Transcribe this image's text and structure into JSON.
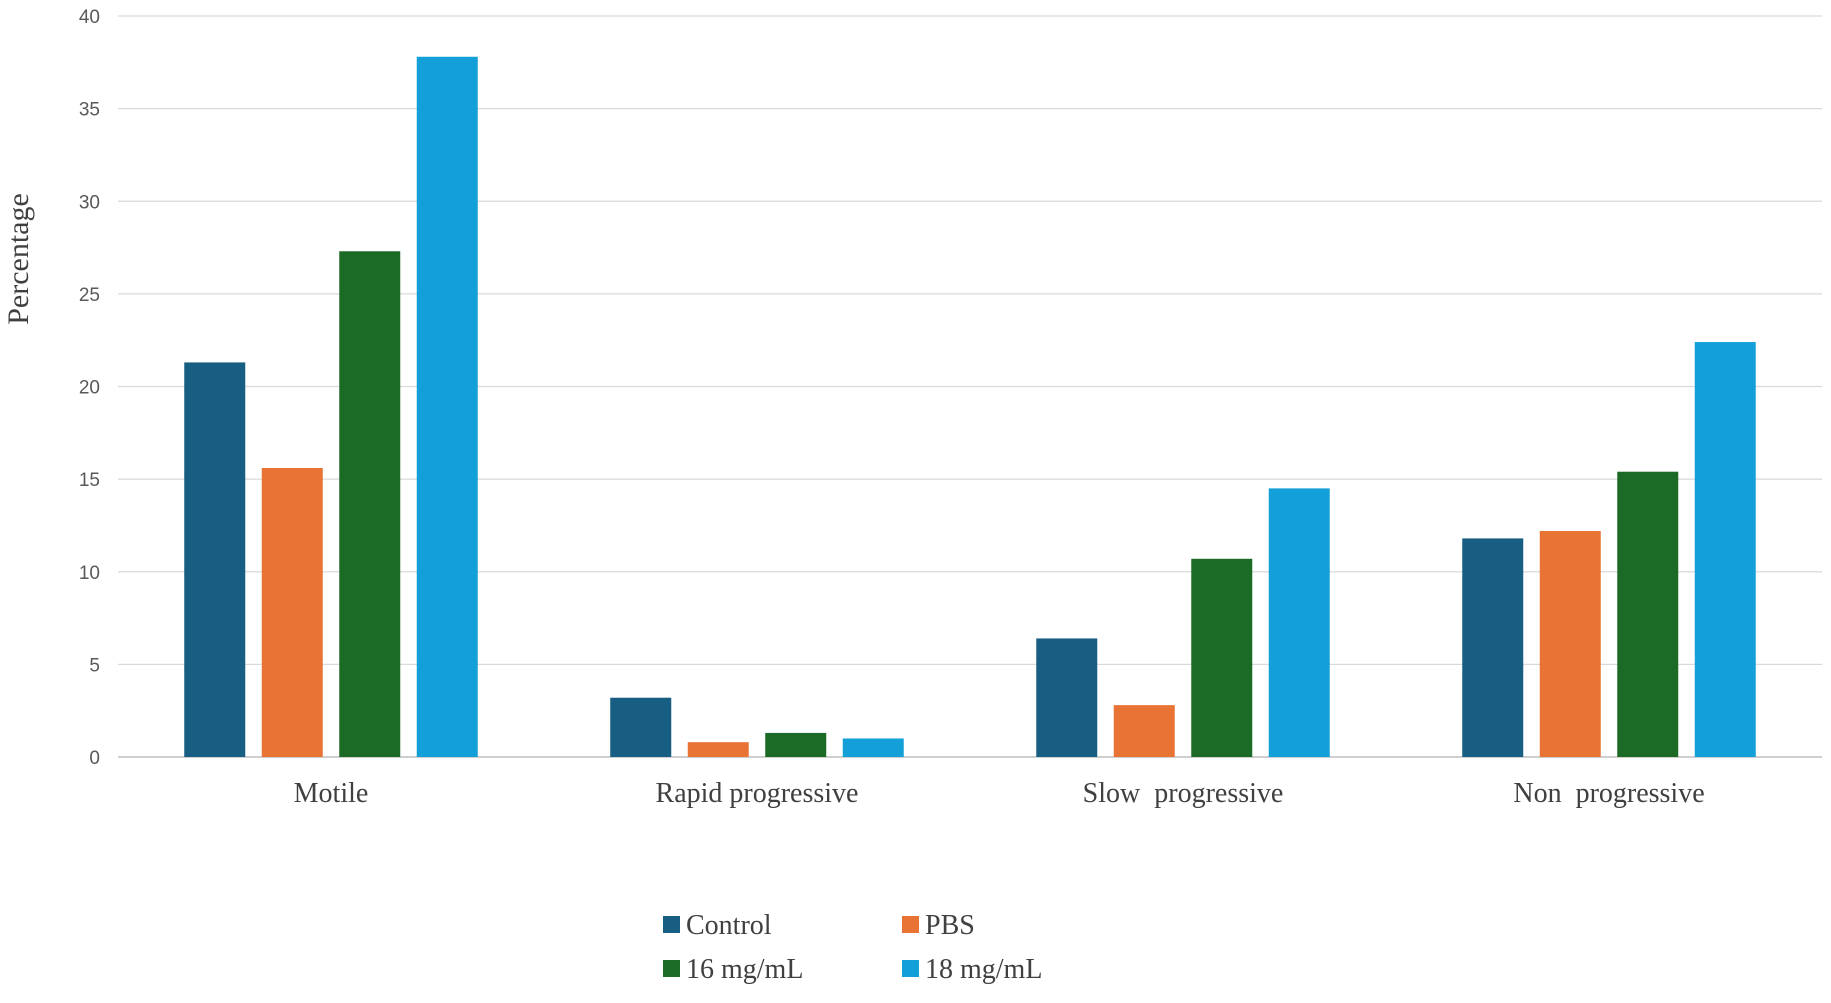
{
  "chart_data": {
    "type": "bar",
    "title": "",
    "xlabel": "",
    "ylabel": "Percentage",
    "ylim": [
      0,
      40
    ],
    "yticks": [
      0,
      5,
      10,
      15,
      20,
      25,
      30,
      35,
      40
    ],
    "grid": true,
    "legend_position": "bottom",
    "categories": [
      "Motile",
      "Rapid progressive",
      "Slow  progressive",
      "Non  progressive"
    ],
    "series": [
      {
        "name": "Control",
        "color": "#175e82",
        "values": [
          21.3,
          3.2,
          6.4,
          11.8
        ]
      },
      {
        "name": "PBS",
        "color": "#e87334",
        "values": [
          15.6,
          0.8,
          2.8,
          12.2
        ]
      },
      {
        "name": "16 mg/mL",
        "color": "#1b6b26",
        "values": [
          27.3,
          1.3,
          10.7,
          15.4
        ]
      },
      {
        "name": "18 mg/mL",
        "color": "#13a0d8",
        "values": [
          37.8,
          1.0,
          14.5,
          22.4
        ]
      }
    ]
  }
}
